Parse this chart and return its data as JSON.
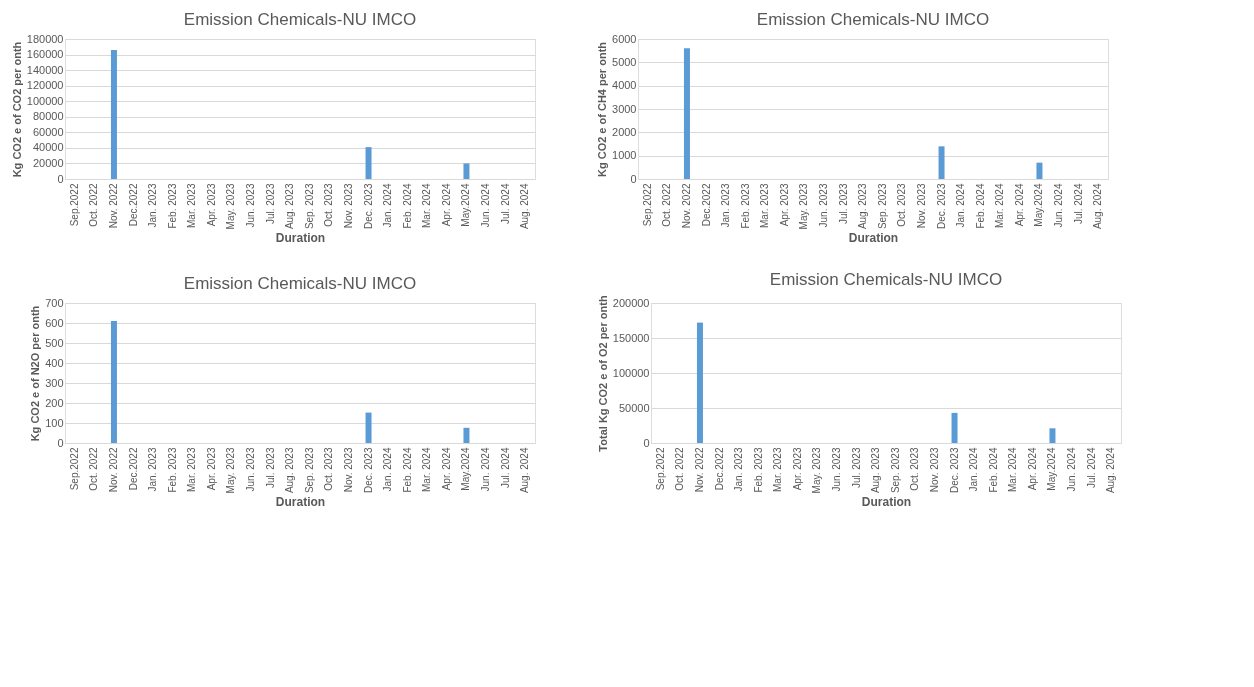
{
  "chart_data": [
    {
      "type": "bar",
      "title": "Emission Chemicals-NU IMCO",
      "xlabel": "Duration",
      "ylabel": "Kg CO2 e of CO2 per onth",
      "categories": [
        "Sep.2022",
        "Oct. 2022",
        "Nov. 2022",
        "Dec.2022",
        "Jan. 2023",
        "Feb. 2023",
        "Mar. 2023",
        "Apr. 2023",
        "May. 2023",
        "Jun. 2023",
        "Jul. 2023",
        "Aug. 2023",
        "Sep. 2023",
        "Oct. 2023",
        "Nov. 2023",
        "Dec. 2023",
        "Jan. 2024",
        "Feb. 2024",
        "Mar. 2024",
        "Apr. 2024",
        "May.2024",
        "Jun. 2024",
        "Jul. 2024",
        "Aug. 2024"
      ],
      "values": [
        0,
        0,
        166000,
        0,
        0,
        0,
        0,
        0,
        0,
        0,
        0,
        0,
        0,
        0,
        0,
        41000,
        0,
        0,
        0,
        0,
        20000,
        0,
        0,
        0
      ],
      "color": "#5b9bd5",
      "ylim": [
        0,
        180000
      ],
      "yticks": [
        0,
        20000,
        40000,
        60000,
        80000,
        100000,
        120000,
        140000,
        160000,
        180000
      ],
      "grid": "y"
    },
    {
      "type": "bar",
      "title": "Emission Chemicals-NU IMCO",
      "xlabel": "Duration",
      "ylabel": "Kg CO2 e of CH4 per onth",
      "categories": [
        "Sep.2022",
        "Oct. 2022",
        "Nov. 2022",
        "Dec.2022",
        "Jan. 2023",
        "Feb. 2023",
        "Mar. 2023",
        "Apr. 2023",
        "May. 2023",
        "Jun. 2023",
        "Jul. 2023",
        "Aug. 2023",
        "Sep. 2023",
        "Oct. 2023",
        "Nov. 2023",
        "Dec. 2023",
        "Jan. 2024",
        "Feb. 2024",
        "Mar. 2024",
        "Apr. 2024",
        "May.2024",
        "Jun. 2024",
        "Jul. 2024",
        "Aug. 2024"
      ],
      "values": [
        0,
        0,
        5600,
        0,
        0,
        0,
        0,
        0,
        0,
        0,
        0,
        0,
        0,
        0,
        0,
        1400,
        0,
        0,
        0,
        0,
        700,
        0,
        0,
        0
      ],
      "color": "#5b9bd5",
      "ylim": [
        0,
        6000
      ],
      "yticks": [
        0,
        1000,
        2000,
        3000,
        4000,
        5000,
        6000
      ],
      "grid": "y"
    },
    {
      "type": "bar",
      "title": "Emission Chemicals-NU IMCO",
      "xlabel": "Duration",
      "ylabel": "Kg CO2 e of N2O per onth",
      "categories": [
        "Sep.2022",
        "Oct. 2022",
        "Nov. 2022",
        "Dec.2022",
        "Jan. 2023",
        "Feb. 2023",
        "Mar. 2023",
        "Apr. 2023",
        "May. 2023",
        "Jun. 2023",
        "Jul. 2023",
        "Aug. 2023",
        "Sep. 2023",
        "Oct. 2023",
        "Nov. 2023",
        "Dec. 2023",
        "Jan. 2024",
        "Feb. 2024",
        "Mar. 2024",
        "Apr. 2024",
        "May.2024",
        "Jun. 2024",
        "Jul. 2024",
        "Aug. 2024"
      ],
      "values": [
        0,
        0,
        610,
        0,
        0,
        0,
        0,
        0,
        0,
        0,
        0,
        0,
        0,
        0,
        0,
        152,
        0,
        0,
        0,
        0,
        76,
        0,
        0,
        0
      ],
      "color": "#5b9bd5",
      "ylim": [
        0,
        700
      ],
      "yticks": [
        0,
        100,
        200,
        300,
        400,
        500,
        600,
        700
      ],
      "grid": "y"
    },
    {
      "type": "bar",
      "title": "Emission Chemicals-NU IMCO",
      "xlabel": "Duration",
      "ylabel": "Total Kg CO2 e of O2  per onth",
      "categories": [
        "Sep.2022",
        "Oct. 2022",
        "Nov. 2022",
        "Dec.2022",
        "Jan. 2023",
        "Feb. 2023",
        "Mar. 2023",
        "Apr. 2023",
        "May. 2023",
        "Jun. 2023",
        "Jul. 2023",
        "Aug. 2023",
        "Sep. 2023",
        "Oct. 2023",
        "Nov. 2023",
        "Dec. 2023",
        "Jan. 2024",
        "Feb. 2024",
        "Mar. 2024",
        "Apr. 2024",
        "May.2024",
        "Jun. 2024",
        "Jul. 2024",
        "Aug. 2024"
      ],
      "values": [
        0,
        0,
        172000,
        0,
        0,
        0,
        0,
        0,
        0,
        0,
        0,
        0,
        0,
        0,
        0,
        43000,
        0,
        0,
        0,
        0,
        21000,
        0,
        0,
        0
      ],
      "color": "#5b9bd5",
      "ylim": [
        0,
        200000
      ],
      "yticks": [
        0,
        50000,
        100000,
        150000,
        200000
      ],
      "grid": "y"
    }
  ]
}
